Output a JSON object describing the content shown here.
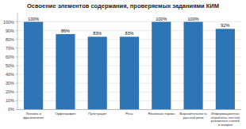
{
  "chart_data": {
    "type": "bar",
    "title": "Освоение элементов содержания, проверяемых заданиями КИМ",
    "categories": [
      "Лексика и фразеология",
      "Орфография",
      "Пунктуация",
      "Речь",
      "Языковые нормы",
      "Выразительность русской речи",
      "Информационная обработка текстов различных стилей и жанров"
    ],
    "values": [
      100,
      86,
      83,
      83,
      100,
      100,
      92
    ],
    "value_labels": [
      "100%",
      "86%",
      "83%",
      "83%",
      "100%",
      "100%",
      "92%"
    ],
    "data_labels": true,
    "color": "#2E75B6",
    "ylim": [
      0,
      110
    ],
    "yticks": [
      {
        "value": 0,
        "label": "0%"
      },
      {
        "value": 10,
        "label": "10%"
      },
      {
        "value": 20,
        "label": "20%"
      },
      {
        "value": 30,
        "label": "30%"
      },
      {
        "value": 40,
        "label": "40%"
      },
      {
        "value": 50,
        "label": "50%"
      },
      {
        "value": 60,
        "label": "60%"
      },
      {
        "value": 70,
        "label": "70%"
      },
      {
        "value": 80,
        "label": "80%"
      },
      {
        "value": 90,
        "label": "90%"
      },
      {
        "value": 100,
        "label": "100%"
      }
    ],
    "grid": true
  }
}
